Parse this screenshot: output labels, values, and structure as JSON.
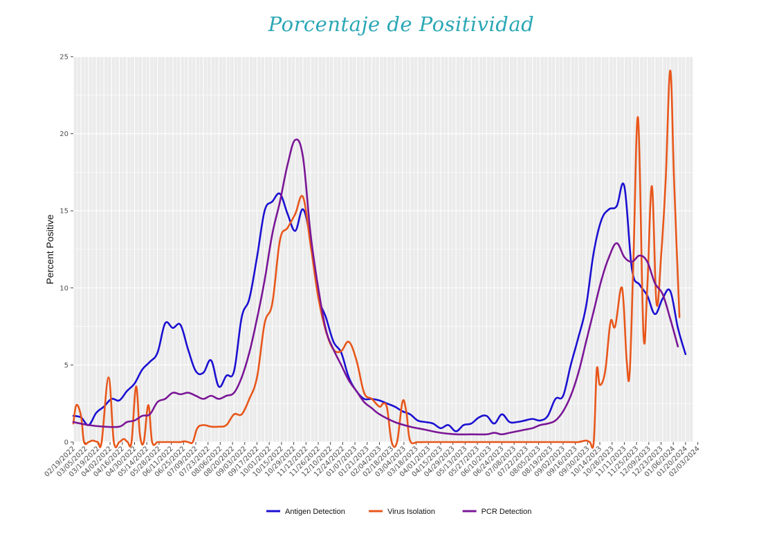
{
  "title": "Porcentaje de Positividad",
  "chart_data": {
    "type": "line",
    "title": "Porcentaje de Positividad",
    "xlabel": "",
    "ylabel": "Percent Positive",
    "ylim": [
      0,
      25
    ],
    "yticks": [
      0,
      5,
      10,
      15,
      20,
      25
    ],
    "grid": true,
    "legend_position": "bottom",
    "x_labels": [
      "02/19/2022",
      "03/05/2022",
      "03/19/2022",
      "04/02/2022",
      "04/16/2022",
      "04/30/2022",
      "05/14/2022",
      "05/28/2022",
      "06/11/2022",
      "06/25/2022",
      "07/09/2022",
      "07/23/2022",
      "08/06/2022",
      "08/20/2022",
      "09/03/2022",
      "09/17/2022",
      "10/01/2022",
      "10/15/2022",
      "10/29/2022",
      "11/12/2022",
      "11/26/2022",
      "12/10/2022",
      "12/24/2022",
      "01/07/2023",
      "01/21/2023",
      "02/04/2023",
      "02/18/2023",
      "03/04/2023",
      "03/18/2023",
      "04/01/2023",
      "04/15/2023",
      "04/29/2023",
      "05/13/2023",
      "05/27/2023",
      "06/10/2023",
      "06/24/2023",
      "07/08/2023",
      "07/22/2023",
      "08/05/2023",
      "08/19/2023",
      "09/02/2023",
      "09/16/2023",
      "09/30/2023",
      "10/14/2023",
      "10/28/2023",
      "11/11/2023",
      "11/25/2023",
      "12/09/2023",
      "12/23/2023",
      "01/06/2024",
      "01/20/2024",
      "02/03/2024"
    ],
    "series": [
      {
        "name": "Antigen Detection",
        "color": "#1a0fd1",
        "points": [
          [
            0,
            1.7
          ],
          [
            1,
            1.6
          ],
          [
            2,
            1.1
          ],
          [
            3,
            1.9
          ],
          [
            4,
            2.3
          ],
          [
            5,
            2.8
          ],
          [
            6,
            2.7
          ],
          [
            7,
            3.3
          ],
          [
            8,
            3.8
          ],
          [
            9,
            4.7
          ],
          [
            10,
            5.2
          ],
          [
            11,
            5.8
          ],
          [
            12,
            7.7
          ],
          [
            13,
            7.4
          ],
          [
            14,
            7.6
          ],
          [
            15,
            6.0
          ],
          [
            16,
            4.6
          ],
          [
            17,
            4.5
          ],
          [
            18,
            5.3
          ],
          [
            19,
            3.6
          ],
          [
            20,
            4.3
          ],
          [
            21,
            4.6
          ],
          [
            22,
            8.1
          ],
          [
            23,
            9.3
          ],
          [
            24,
            12.0
          ],
          [
            25,
            15.0
          ],
          [
            26,
            15.6
          ],
          [
            27,
            16.1
          ],
          [
            28,
            14.8
          ],
          [
            29,
            13.7
          ],
          [
            30,
            15.1
          ],
          [
            31,
            13.1
          ],
          [
            32,
            9.5
          ],
          [
            33,
            8.1
          ],
          [
            34,
            6.5
          ],
          [
            35,
            5.8
          ],
          [
            36,
            4.2
          ],
          [
            37,
            3.3
          ],
          [
            38,
            2.8
          ],
          [
            39,
            2.8
          ],
          [
            40,
            2.7
          ],
          [
            41,
            2.5
          ],
          [
            42,
            2.3
          ],
          [
            43,
            2.0
          ],
          [
            44,
            1.8
          ],
          [
            45,
            1.4
          ],
          [
            46,
            1.3
          ],
          [
            47,
            1.2
          ],
          [
            48,
            0.9
          ],
          [
            49,
            1.1
          ],
          [
            50,
            0.7
          ],
          [
            51,
            1.1
          ],
          [
            52,
            1.2
          ],
          [
            53,
            1.6
          ],
          [
            54,
            1.7
          ],
          [
            55,
            1.2
          ],
          [
            56,
            1.8
          ],
          [
            57,
            1.3
          ],
          [
            58,
            1.3
          ],
          [
            59,
            1.4
          ],
          [
            60,
            1.5
          ],
          [
            61,
            1.4
          ],
          [
            62,
            1.7
          ],
          [
            63,
            2.8
          ],
          [
            64,
            3.0
          ],
          [
            65,
            5.0
          ],
          [
            66,
            6.8
          ],
          [
            67,
            8.8
          ],
          [
            68,
            12.3
          ],
          [
            69,
            14.4
          ],
          [
            70,
            15.1
          ],
          [
            71,
            15.3
          ],
          [
            72,
            16.6
          ],
          [
            73,
            11.2
          ],
          [
            74,
            10.2
          ],
          [
            75,
            9.5
          ],
          [
            76,
            8.3
          ],
          [
            77,
            9.3
          ],
          [
            78,
            9.8
          ],
          [
            79,
            7.4
          ],
          [
            80,
            5.7
          ]
        ]
      },
      {
        "name": "Virus Isolation",
        "color": "#e8561a",
        "points": [
          [
            0,
            1.2
          ],
          [
            0.4,
            2.4
          ],
          [
            1,
            1.7
          ],
          [
            1.4,
            0
          ],
          [
            2,
            0
          ],
          [
            2.5,
            0.1
          ],
          [
            3.2,
            0
          ],
          [
            3.7,
            0
          ],
          [
            4.6,
            4.2
          ],
          [
            5.3,
            0
          ],
          [
            6,
            0
          ],
          [
            6.6,
            0.2
          ],
          [
            7.1,
            0
          ],
          [
            7.6,
            0
          ],
          [
            8.2,
            3.6
          ],
          [
            8.7,
            0.5
          ],
          [
            9.2,
            0
          ],
          [
            9.8,
            2.4
          ],
          [
            10.3,
            0
          ],
          [
            11,
            0
          ],
          [
            11.5,
            0
          ],
          [
            12,
            0
          ],
          [
            12.5,
            0
          ],
          [
            13,
            0
          ],
          [
            13.5,
            0
          ],
          [
            14,
            0
          ],
          [
            14.5,
            0.05
          ],
          [
            15,
            0
          ],
          [
            15.6,
            0
          ],
          [
            16.2,
            0.9
          ],
          [
            17,
            1.1
          ],
          [
            18,
            1.0
          ],
          [
            19,
            1.0
          ],
          [
            20,
            1.1
          ],
          [
            21,
            1.8
          ],
          [
            22,
            1.8
          ],
          [
            23,
            2.8
          ],
          [
            24,
            4.2
          ],
          [
            25,
            7.7
          ],
          [
            26,
            9.0
          ],
          [
            27,
            13.1
          ],
          [
            28,
            13.9
          ],
          [
            29,
            14.8
          ],
          [
            30,
            15.9
          ],
          [
            31,
            12.8
          ],
          [
            32,
            9.4
          ],
          [
            33,
            7.2
          ],
          [
            34,
            6.0
          ],
          [
            35,
            5.9
          ],
          [
            36,
            6.5
          ],
          [
            37,
            5.3
          ],
          [
            38,
            3.2
          ],
          [
            39,
            2.8
          ],
          [
            40,
            2.3
          ],
          [
            40.5,
            2.5
          ],
          [
            41,
            2.2
          ],
          [
            41.6,
            0
          ],
          [
            42.3,
            0
          ],
          [
            43,
            2.6
          ],
          [
            43.5,
            2.0
          ],
          [
            44,
            0.1
          ],
          [
            45,
            0
          ],
          [
            46,
            0
          ],
          [
            47,
            0
          ],
          [
            48,
            0
          ],
          [
            49,
            0
          ],
          [
            50,
            0
          ],
          [
            51,
            0
          ],
          [
            52,
            0
          ],
          [
            53,
            0
          ],
          [
            54,
            0
          ],
          [
            55,
            0
          ],
          [
            56,
            0
          ],
          [
            57,
            0
          ],
          [
            58,
            0
          ],
          [
            59,
            0
          ],
          [
            60,
            0
          ],
          [
            61,
            0
          ],
          [
            62,
            0
          ],
          [
            63,
            0
          ],
          [
            64,
            0
          ],
          [
            65,
            0
          ],
          [
            66,
            0
          ],
          [
            67,
            0.1
          ],
          [
            67.5,
            0
          ],
          [
            68,
            0
          ],
          [
            68.4,
            4.7
          ],
          [
            68.8,
            3.7
          ],
          [
            69.5,
            4.6
          ],
          [
            70.2,
            7.8
          ],
          [
            70.8,
            7.5
          ],
          [
            71.7,
            10.0
          ],
          [
            72.3,
            5.3
          ],
          [
            72.7,
            4.5
          ],
          [
            73.2,
            12.0
          ],
          [
            73.8,
            21.0
          ],
          [
            74.5,
            7.0
          ],
          [
            75,
            10.0
          ],
          [
            75.6,
            16.6
          ],
          [
            76.2,
            9.0
          ],
          [
            76.8,
            12.0
          ],
          [
            77.4,
            17.0
          ],
          [
            78,
            24.1
          ],
          [
            78.5,
            17.0
          ],
          [
            79.2,
            8.1
          ]
        ]
      },
      {
        "name": "PCR Detection",
        "color": "#7a1696",
        "points": [
          [
            0,
            1.3
          ],
          [
            2,
            1.1
          ],
          [
            4,
            1.0
          ],
          [
            6,
            1.0
          ],
          [
            7,
            1.3
          ],
          [
            8,
            1.4
          ],
          [
            9,
            1.7
          ],
          [
            10,
            1.8
          ],
          [
            11,
            2.6
          ],
          [
            12,
            2.8
          ],
          [
            13,
            3.2
          ],
          [
            14,
            3.1
          ],
          [
            15,
            3.2
          ],
          [
            16,
            3.0
          ],
          [
            17,
            2.8
          ],
          [
            18,
            3.0
          ],
          [
            19,
            2.8
          ],
          [
            20,
            3.0
          ],
          [
            21,
            3.2
          ],
          [
            22,
            4.2
          ],
          [
            23,
            5.8
          ],
          [
            24,
            8.0
          ],
          [
            25,
            10.5
          ],
          [
            26,
            13.5
          ],
          [
            27,
            15.6
          ],
          [
            28,
            18.0
          ],
          [
            29,
            19.6
          ],
          [
            30,
            18.5
          ],
          [
            31,
            13.5
          ],
          [
            32,
            10.0
          ],
          [
            33,
            7.3
          ],
          [
            34,
            6.0
          ],
          [
            35,
            5.0
          ],
          [
            36,
            4.0
          ],
          [
            37,
            3.3
          ],
          [
            38,
            2.6
          ],
          [
            39,
            2.2
          ],
          [
            40,
            1.8
          ],
          [
            42,
            1.3
          ],
          [
            44,
            1.0
          ],
          [
            46,
            0.8
          ],
          [
            48,
            0.6
          ],
          [
            50,
            0.5
          ],
          [
            52,
            0.5
          ],
          [
            54,
            0.5
          ],
          [
            55,
            0.6
          ],
          [
            56,
            0.5
          ],
          [
            57,
            0.6
          ],
          [
            58,
            0.7
          ],
          [
            59,
            0.8
          ],
          [
            60,
            0.9
          ],
          [
            61,
            1.1
          ],
          [
            62,
            1.2
          ],
          [
            63,
            1.4
          ],
          [
            64,
            2.0
          ],
          [
            65,
            3.0
          ],
          [
            66,
            4.5
          ],
          [
            67,
            6.5
          ],
          [
            68,
            8.5
          ],
          [
            69,
            10.5
          ],
          [
            70,
            12.0
          ],
          [
            71,
            12.9
          ],
          [
            72,
            12.0
          ],
          [
            73,
            11.7
          ],
          [
            74,
            12.1
          ],
          [
            75,
            11.7
          ],
          [
            76,
            10.3
          ],
          [
            77,
            9.6
          ],
          [
            78,
            8.0
          ],
          [
            79,
            6.2
          ]
        ]
      }
    ]
  },
  "legend": [
    {
      "label": "Antigen Detection",
      "color": "#1a0fd1"
    },
    {
      "label": "Virus Isolation",
      "color": "#e8561a"
    },
    {
      "label": "PCR Detection",
      "color": "#7a1696"
    }
  ]
}
